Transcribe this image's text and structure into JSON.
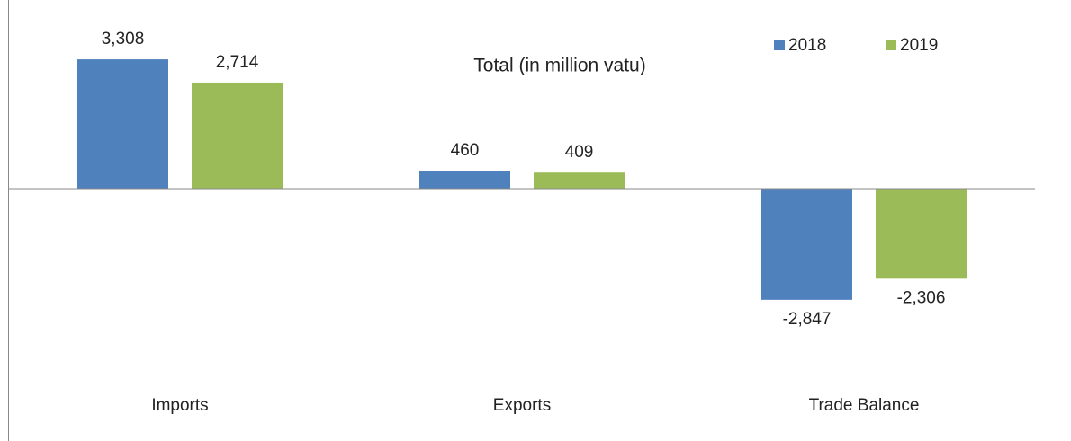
{
  "chart_data": {
    "type": "bar",
    "subtitle": "Total (in million vatu)",
    "categories": [
      "Imports",
      "Exports",
      "Trade Balance"
    ],
    "series": [
      {
        "name": "2018",
        "color": "#4f81bd",
        "values": [
          3308,
          460,
          -2847
        ],
        "value_labels": [
          "3,308",
          "460",
          "-2,847"
        ]
      },
      {
        "name": "2019",
        "color": "#9bbb59",
        "values": [
          2714,
          409,
          -2306
        ],
        "value_labels": [
          "2,714",
          "409",
          "-2,306"
        ]
      }
    ],
    "ylim": [
      -4000,
      4000
    ],
    "legend": "top-right"
  }
}
